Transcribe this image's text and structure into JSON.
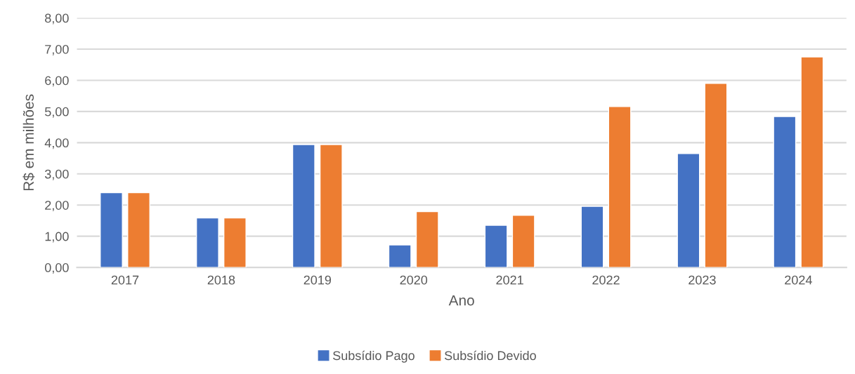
{
  "chart_data": {
    "type": "bar",
    "xlabel": "Ano",
    "ylabel": "R$ em milhões",
    "categories": [
      "2017",
      "2018",
      "2019",
      "2020",
      "2021",
      "2022",
      "2023",
      "2024"
    ],
    "series": [
      {
        "name": "Subsídio Pago",
        "color": "#4472c4",
        "values": [
          2.4,
          1.59,
          3.94,
          0.72,
          1.35,
          1.96,
          3.65,
          4.84
        ]
      },
      {
        "name": "Subsídio Devido",
        "color": "#ed7d31",
        "values": [
          2.4,
          1.59,
          3.94,
          1.79,
          1.67,
          5.16,
          5.9,
          6.75
        ]
      }
    ],
    "ylim": [
      0,
      8
    ],
    "yticks": [
      {
        "value": 0,
        "label": "0,00"
      },
      {
        "value": 1,
        "label": "1,00"
      },
      {
        "value": 2,
        "label": "2,00"
      },
      {
        "value": 3,
        "label": "3,00"
      },
      {
        "value": 4,
        "label": "4,00"
      },
      {
        "value": 5,
        "label": "5,00"
      },
      {
        "value": 6,
        "label": "6,00"
      },
      {
        "value": 7,
        "label": "7,00"
      },
      {
        "value": 8,
        "label": "8,00"
      }
    ],
    "grid": "y",
    "legend": "bottom"
  }
}
